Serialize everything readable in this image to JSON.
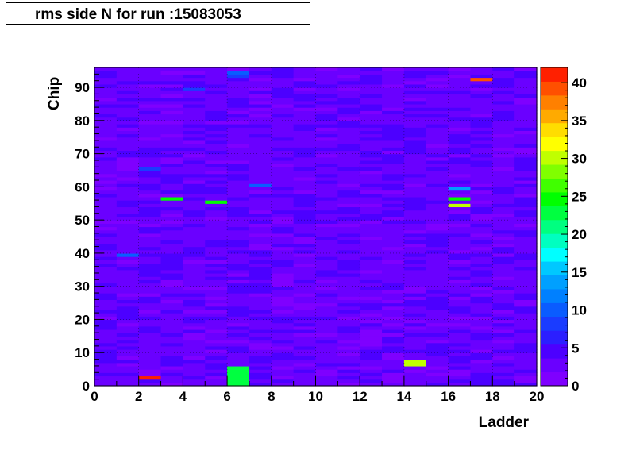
{
  "chart_data": {
    "type": "heatmap",
    "title": "rms side N for run :15083053",
    "xlabel": "Ladder",
    "ylabel": "Chip",
    "xlim": [
      0,
      20
    ],
    "ylim": [
      0,
      96
    ],
    "x_ticks": [
      "0",
      "2",
      "4",
      "6",
      "8",
      "10",
      "12",
      "14",
      "16",
      "18",
      "20"
    ],
    "y_ticks": [
      "0",
      "10",
      "20",
      "30",
      "40",
      "50",
      "60",
      "70",
      "80",
      "90"
    ],
    "color_scale": {
      "min": 0,
      "max": 42,
      "ticks": [
        "0",
        "5",
        "10",
        "15",
        "20",
        "25",
        "30",
        "35",
        "40"
      ],
      "colors": [
        "#7f00ff",
        "#6a00ff",
        "#4c00ff",
        "#2b1fff",
        "#1a3cff",
        "#0a5cff",
        "#0080ff",
        "#00a0ff",
        "#00c8ff",
        "#00ffff",
        "#00ffc0",
        "#00ff80",
        "#00ff40",
        "#00ff00",
        "#40ff00",
        "#80ff00",
        "#c0ff00",
        "#ffff00",
        "#ffdd00",
        "#ffaa00",
        "#ff8000",
        "#ff5000",
        "#ff2000"
      ]
    },
    "background_value": 3,
    "grid": true,
    "hot_cells": [
      {
        "ladder": 2,
        "chip": 2,
        "value": 41
      },
      {
        "ladder": 6,
        "chip": 0,
        "value": 23
      },
      {
        "ladder": 6,
        "chip": 1,
        "value": 23
      },
      {
        "ladder": 6,
        "chip": 2,
        "value": 23
      },
      {
        "ladder": 6,
        "chip": 3,
        "value": 23
      },
      {
        "ladder": 6,
        "chip": 4,
        "value": 23
      },
      {
        "ladder": 6,
        "chip": 5,
        "value": 23
      },
      {
        "ladder": 14,
        "chip": 6,
        "value": 30
      },
      {
        "ladder": 14,
        "chip": 7,
        "value": 30
      },
      {
        "ladder": 16,
        "chip": 54,
        "value": 31
      },
      {
        "ladder": 16,
        "chip": 56,
        "value": 24
      },
      {
        "ladder": 16,
        "chip": 59,
        "value": 14
      },
      {
        "ladder": 3,
        "chip": 56,
        "value": 25
      },
      {
        "ladder": 5,
        "chip": 55,
        "value": 24
      },
      {
        "ladder": 17,
        "chip": 92,
        "value": 40
      },
      {
        "ladder": 2,
        "chip": 65,
        "value": 9
      },
      {
        "ladder": 7,
        "chip": 60,
        "value": 10
      },
      {
        "ladder": 1,
        "chip": 39,
        "value": 10
      },
      {
        "ladder": 6,
        "chip": 94,
        "value": 10
      },
      {
        "ladder": 4,
        "chip": 89,
        "value": 9
      },
      {
        "ladder": 6,
        "chip": 93,
        "value": 9
      }
    ]
  }
}
